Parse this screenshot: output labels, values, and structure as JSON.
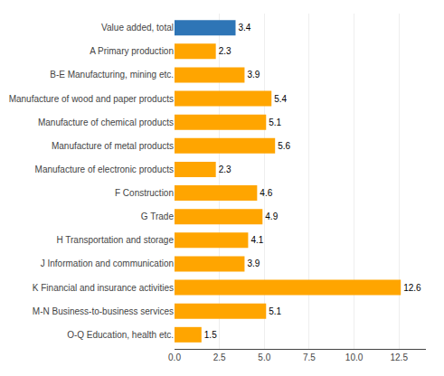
{
  "chart_data": {
    "type": "bar",
    "orientation": "horizontal",
    "categories": [
      "O-Q Education, health etc.",
      "M-N Business-to-business services",
      "K Financial and insurance activities",
      "J Information and communication",
      "H Transportation and storage",
      "G Trade",
      "F Construction",
      "Manufacture of electronic products",
      "Manufacture of metal products",
      "Manufacture of chemical products",
      "Manufacture of wood and paper products",
      "B-E Manufacturing, mining etc.",
      "A Primary production",
      "Value added, total"
    ],
    "values": [
      1.5,
      5.1,
      12.6,
      3.9,
      4.1,
      4.9,
      4.6,
      2.3,
      5.6,
      5.1,
      5.4,
      3.9,
      2.3,
      3.4
    ],
    "colors": [
      "#FFA500",
      "#FFA500",
      "#FFA500",
      "#FFA500",
      "#FFA500",
      "#FFA500",
      "#FFA500",
      "#FFA500",
      "#FFA500",
      "#FFA500",
      "#FFA500",
      "#FFA500",
      "#FFA500",
      "#2E75B6"
    ],
    "xlim": [
      0,
      14.0
    ],
    "xticks": [
      {
        "value": 0,
        "label": "0.0"
      },
      2.5,
      {
        "value": 5,
        "label": "5.0"
      },
      7.5,
      {
        "value": 10,
        "label": "10.0"
      },
      12.5
    ],
    "grid": true,
    "data_labels": true
  }
}
